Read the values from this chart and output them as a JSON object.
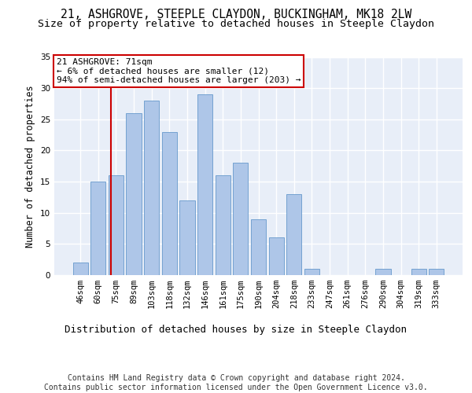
{
  "title1": "21, ASHGROVE, STEEPLE CLAYDON, BUCKINGHAM, MK18 2LW",
  "title2": "Size of property relative to detached houses in Steeple Claydon",
  "xlabel": "Distribution of detached houses by size in Steeple Claydon",
  "ylabel": "Number of detached properties",
  "categories": [
    "46sqm",
    "60sqm",
    "75sqm",
    "89sqm",
    "103sqm",
    "118sqm",
    "132sqm",
    "146sqm",
    "161sqm",
    "175sqm",
    "190sqm",
    "204sqm",
    "218sqm",
    "233sqm",
    "247sqm",
    "261sqm",
    "276sqm",
    "290sqm",
    "304sqm",
    "319sqm",
    "333sqm"
  ],
  "values": [
    2,
    15,
    16,
    26,
    28,
    23,
    12,
    29,
    16,
    18,
    9,
    6,
    13,
    1,
    0,
    0,
    0,
    1,
    0,
    1,
    1
  ],
  "bar_color": "#aec6e8",
  "bar_edge_color": "#6699cc",
  "background_color": "#e8eef8",
  "grid_color": "#ffffff",
  "annotation_box_text": "21 ASHGROVE: 71sqm\n← 6% of detached houses are smaller (12)\n94% of semi-detached houses are larger (203) →",
  "annotation_box_color": "#ffffff",
  "annotation_box_edgecolor": "#cc0000",
  "vline_color": "#cc0000",
  "ylim": [
    0,
    35
  ],
  "yticks": [
    0,
    5,
    10,
    15,
    20,
    25,
    30,
    35
  ],
  "footer_text": "Contains HM Land Registry data © Crown copyright and database right 2024.\nContains public sector information licensed under the Open Government Licence v3.0.",
  "title1_fontsize": 10.5,
  "title2_fontsize": 9.5,
  "xlabel_fontsize": 9,
  "ylabel_fontsize": 8.5,
  "tick_fontsize": 7.5,
  "annot_fontsize": 8,
  "footer_fontsize": 7
}
